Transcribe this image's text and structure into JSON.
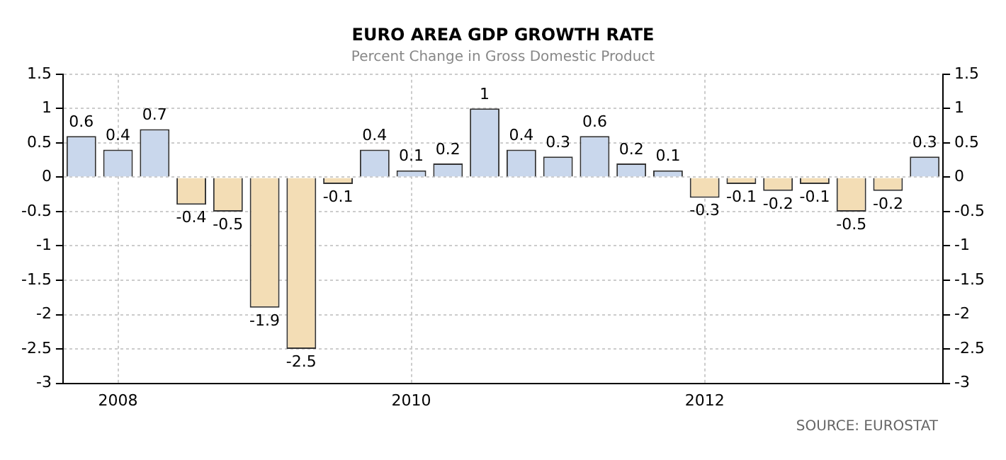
{
  "chart_data": {
    "type": "bar",
    "title": "EURO AREA GDP GROWTH RATE",
    "subtitle": "Percent Change in Gross Domestic Product",
    "categories": [
      null,
      "2008",
      null,
      null,
      null,
      null,
      null,
      null,
      null,
      "2010",
      null,
      null,
      null,
      null,
      null,
      null,
      null,
      "2012",
      null,
      null,
      null,
      null,
      null,
      null
    ],
    "values": [
      0.6,
      0.4,
      0.7,
      -0.4,
      -0.5,
      -1.9,
      -2.5,
      -0.1,
      0.4,
      0.1,
      0.2,
      1,
      0.4,
      0.3,
      0.6,
      0.2,
      0.1,
      -0.3,
      -0.1,
      -0.2,
      -0.1,
      -0.5,
      -0.2,
      0.3
    ],
    "colors": [
      "#c9d7ec",
      "#c9d7ec",
      "#c9d7ec",
      "#f3ddb5",
      "#f3ddb5",
      "#f3ddb5",
      "#f3ddb5",
      "#f3ddb5",
      "#c9d7ec",
      "#c9d7ec",
      "#c9d7ec",
      "#c9d7ec",
      "#c9d7ec",
      "#c9d7ec",
      "#c9d7ec",
      "#c9d7ec",
      "#c9d7ec",
      "#f3ddb5",
      "#f3ddb5",
      "#f3ddb5",
      "#f3ddb5",
      "#f3ddb5",
      "#f3ddb5",
      "#c9d7ec"
    ],
    "ylim": [
      -3,
      1.5
    ],
    "yticks": [
      -3,
      -2.5,
      -2,
      -1.5,
      -1,
      -0.5,
      0,
      0.5,
      1,
      1.5
    ],
    "y2lim": [
      -3,
      1.5
    ],
    "y2ticks": [
      -3,
      -2.5,
      -2,
      -1.5,
      -1,
      -0.5,
      0,
      0.5,
      1,
      1.5
    ],
    "grid": true,
    "data_labels": true,
    "legend": false,
    "annotations": [
      "SOURCE: EUROSTAT"
    ]
  }
}
